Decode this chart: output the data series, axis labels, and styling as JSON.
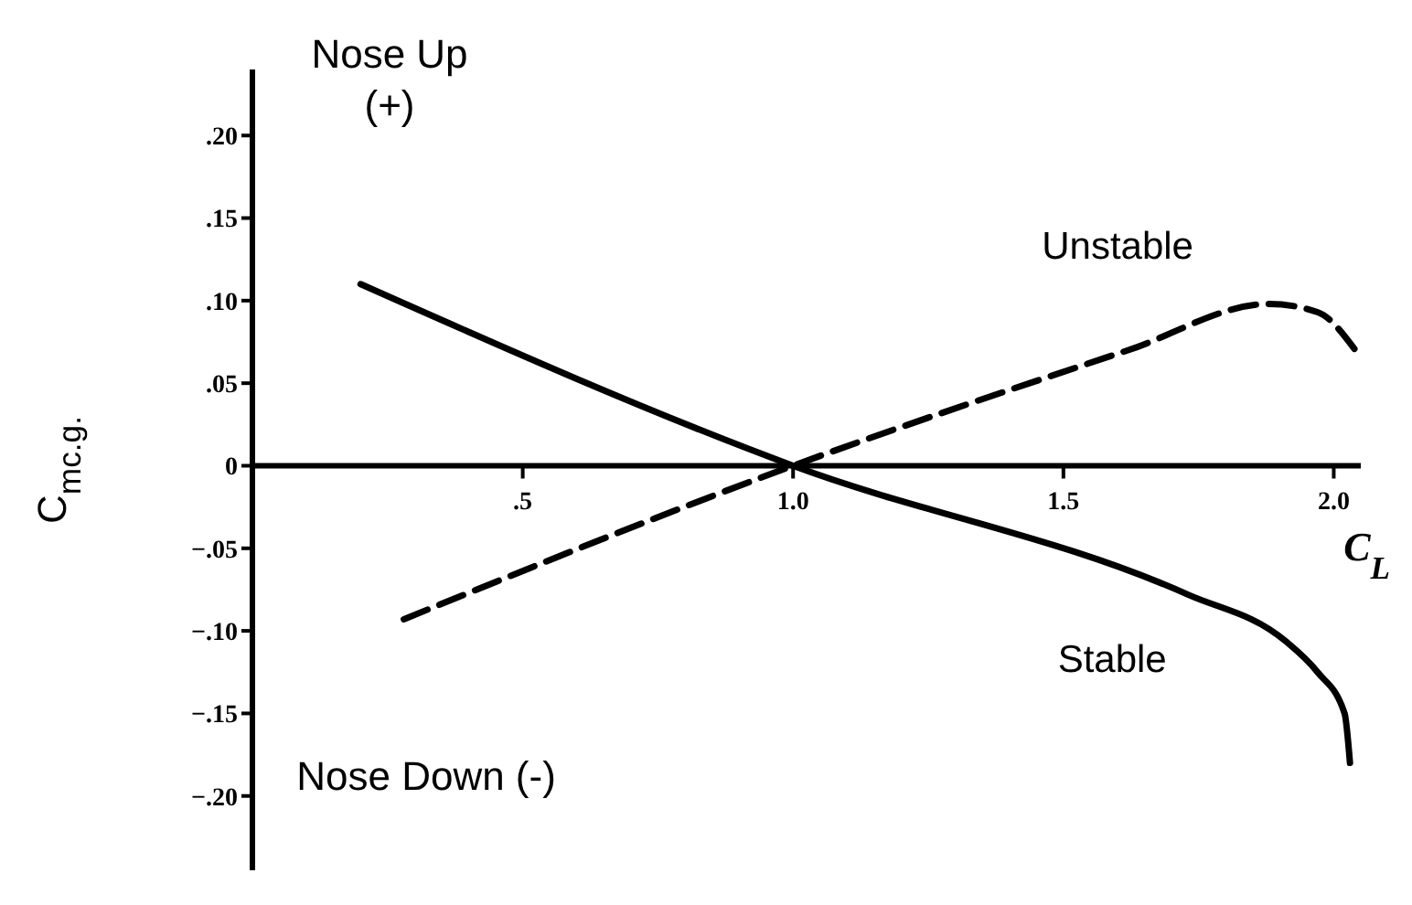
{
  "chart_data": {
    "type": "line",
    "xlabel": "C$_{L}$",
    "ylabel": "C$_{mc.g.}$",
    "annotations": [
      "Nose Up (+)",
      "Nose Down (-)"
    ],
    "xlim": [
      0,
      2.05
    ],
    "ylim": [
      -0.245,
      0.24
    ],
    "xticks": [
      {
        "value": 0.5,
        "label": ".5"
      },
      {
        "value": 1,
        "label": "1.0"
      },
      {
        "value": 1.5,
        "label": "1.5"
      },
      {
        "value": 2,
        "label": "2.0"
      }
    ],
    "yticks": [
      {
        "value": 0.2,
        "label": ".20"
      },
      {
        "value": 0.15,
        "label": ".15"
      },
      {
        "value": 0.1,
        "label": ".10"
      },
      {
        "value": 0.05,
        "label": ".05"
      },
      0,
      {
        "value": -0.05,
        "label": "−.05"
      },
      {
        "value": -0.1,
        "label": "−.10"
      },
      {
        "value": -0.15,
        "label": "−.15"
      },
      {
        "value": -0.2,
        "label": "−.20"
      }
    ],
    "grid": false,
    "legend": false,
    "marker": "none",
    "series": [
      {
        "name": "Unstable",
        "color": "#000000",
        "line_style": "dashed",
        "x": [
          0.28,
          1.0,
          1.62,
          1.88,
          1.97,
          2.04
        ],
        "values": [
          -0.093,
          0,
          0.07,
          0.098,
          0.093,
          0.07
        ]
      },
      {
        "name": "Stable",
        "color": "#000000",
        "line_style": "solid",
        "x": [
          0.2,
          1.0,
          1.73,
          1.91,
          1.97,
          2.02,
          2.03
        ],
        "values": [
          0.11,
          0,
          -0.078,
          -0.106,
          -0.125,
          -0.15,
          -0.18
        ]
      }
    ]
  }
}
